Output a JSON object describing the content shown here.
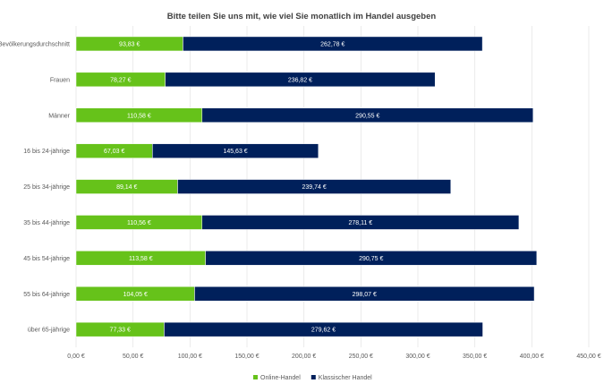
{
  "chart_data": {
    "type": "bar",
    "orientation": "horizontal",
    "stacked": true,
    "title": "Bitte teilen Sie uns mit, wie viel Sie monatlich im Handel ausgeben",
    "xlabel": "",
    "ylabel": "",
    "xlim": [
      0,
      450
    ],
    "x_ticks": [
      0,
      50,
      100,
      150,
      200,
      250,
      300,
      350,
      400,
      450
    ],
    "x_tick_labels": [
      "0,00 €",
      "50,00 €",
      "100,00 €",
      "150,00 €",
      "200,00 €",
      "250,00 €",
      "300,00 €",
      "350,00 €",
      "400,00 €",
      "450,00 €"
    ],
    "grid": "vertical",
    "legend_position": "bottom",
    "categories": [
      "Bevölkerungsdurchschnitt",
      "Frauen",
      "Männer",
      "16 bis 24-jährige",
      "25 bis 34-jährige",
      "35 bis 44-jährige",
      "45 bis 54-jährige",
      "55 bis 64-jährige",
      "über 65-jährige"
    ],
    "series": [
      {
        "name": "Online-Handel",
        "color": "#66c21a",
        "values": [
          93.83,
          78.27,
          110.58,
          67.03,
          89.14,
          110.56,
          113.58,
          104.05,
          77.33
        ],
        "labels": [
          "93,83 €",
          "78,27 €",
          "110,58 €",
          "67,03 €",
          "89,14 €",
          "110,56 €",
          "113,58 €",
          "104,05 €",
          "77,33 €"
        ]
      },
      {
        "name": "Klassischer Handel",
        "color": "#00205b",
        "values": [
          262.78,
          236.82,
          290.55,
          145.63,
          239.74,
          278.11,
          290.75,
          298.07,
          279.62
        ],
        "labels": [
          "262,78 €",
          "236,82 €",
          "290,55 €",
          "145,63 €",
          "239,74 €",
          "278,11 €",
          "290,75 €",
          "298,07 €",
          "279,62 €"
        ]
      }
    ]
  }
}
